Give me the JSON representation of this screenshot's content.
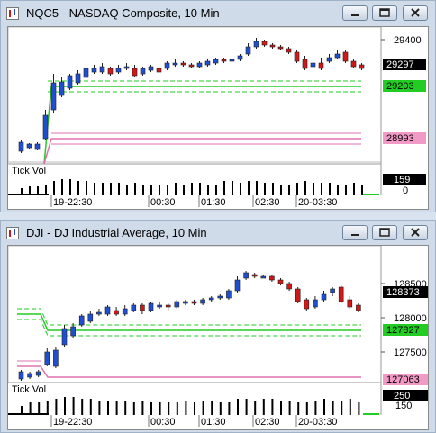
{
  "top": {
    "title": "NQC5 - NASDAQ Composite, 10 Min",
    "price_ticks": [
      "29400"
    ],
    "badges": [
      {
        "label": "29297",
        "bg": "#000000",
        "fg": "#ffffff"
      },
      {
        "label": "29203",
        "bg": "#22cc22",
        "fg": "#000000"
      },
      {
        "label": "28993",
        "bg": "#f29ac6",
        "fg": "#000000"
      }
    ],
    "vol_label": "Tick Vol",
    "vol_badge": "159",
    "vol_zero": "0",
    "time_labels": [
      "19-22:30",
      "00:30",
      "01:30",
      "02:30",
      "20-03:30"
    ]
  },
  "bottom": {
    "title": "DJI - DJ Industrial Average, 10 Min",
    "price_ticks": [
      "128500",
      "128000",
      "127500"
    ],
    "badges": [
      {
        "label": "128373",
        "bg": "#000000",
        "fg": "#ffffff"
      },
      {
        "label": "127827",
        "bg": "#22cc22",
        "fg": "#000000"
      },
      {
        "label": "127063",
        "bg": "#f29ac6",
        "fg": "#000000"
      }
    ],
    "vol_label": "Tick Vol",
    "vol_badge": "250",
    "vol_150": "150",
    "time_labels": [
      "19-22:30",
      "00:30",
      "01:30",
      "02:30",
      "20-03:30"
    ]
  },
  "colors": {
    "up": "#1f4fd0",
    "down": "#d01818",
    "green": "#22bb22",
    "pink": "#e070b0"
  },
  "icons": [
    "app-icon",
    "minimize-icon",
    "restore-icon",
    "close-icon"
  ]
}
